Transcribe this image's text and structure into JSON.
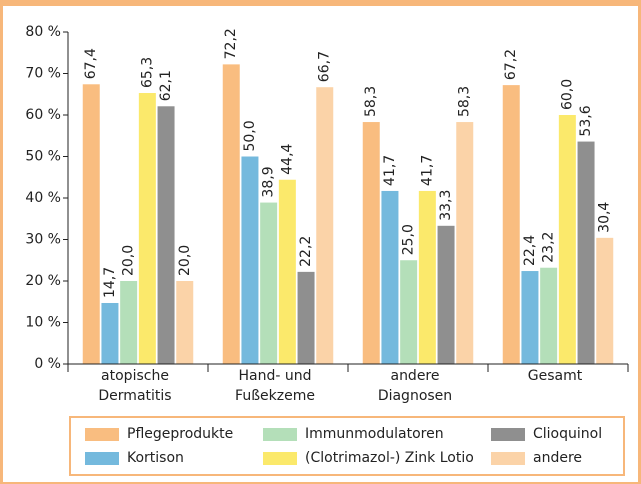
{
  "chart_data": {
    "type": "bar",
    "categories": [
      "atopische\nDermatitis",
      "Hand- und\nFußekzeme",
      "andere\nDiagnosen",
      "Gesamt"
    ],
    "series": [
      {
        "name": "Pflegeprodukte",
        "color": "#f9bd80",
        "values": [
          67.4,
          72.2,
          58.3,
          67.2
        ],
        "value_labels": [
          "67,4",
          "72,2",
          "58,3",
          "67,2"
        ]
      },
      {
        "name": "Kortison",
        "color": "#74b9dd",
        "values": [
          14.7,
          50.0,
          41.7,
          22.4
        ],
        "value_labels": [
          "14,7",
          "50,0",
          "41,7",
          "22,4"
        ]
      },
      {
        "name": "Immunmodulatoren",
        "color": "#b4dfb9",
        "values": [
          20.0,
          38.9,
          25.0,
          23.2
        ],
        "value_labels": [
          "20,0",
          "38,9",
          "25,0",
          "23,2"
        ]
      },
      {
        "name": "(Clotrimazol-) Zink Lotio",
        "color": "#fbe96b",
        "values": [
          65.3,
          44.4,
          41.7,
          60.0
        ],
        "value_labels": [
          "65,3",
          "44,4",
          "41,7",
          "60,0"
        ]
      },
      {
        "name": "Clioquinol",
        "color": "#8f8f8f",
        "values": [
          62.1,
          22.2,
          33.3,
          53.6
        ],
        "value_labels": [
          "62,1",
          "22,2",
          "33,3",
          "53,6"
        ]
      },
      {
        "name": "andere",
        "color": "#fbd3a8",
        "values": [
          20.0,
          66.7,
          58.3,
          30.4
        ],
        "value_labels": [
          "20,0",
          "66,7",
          "58,3",
          "30,4"
        ]
      }
    ],
    "ylim": [
      0,
      80
    ],
    "yticks": [
      {
        "value": 0,
        "label": "0 %"
      },
      {
        "value": 10,
        "label": "10 %"
      },
      {
        "value": 20,
        "label": "20 %"
      },
      {
        "value": 30,
        "label": "30 %"
      },
      {
        "value": 40,
        "label": "40 %"
      },
      {
        "value": 50,
        "label": "50 %"
      },
      {
        "value": 60,
        "label": "60 %"
      },
      {
        "value": 70,
        "label": "70 %"
      },
      {
        "value": 80,
        "label": "80 %"
      }
    ],
    "legend": "bottom"
  }
}
